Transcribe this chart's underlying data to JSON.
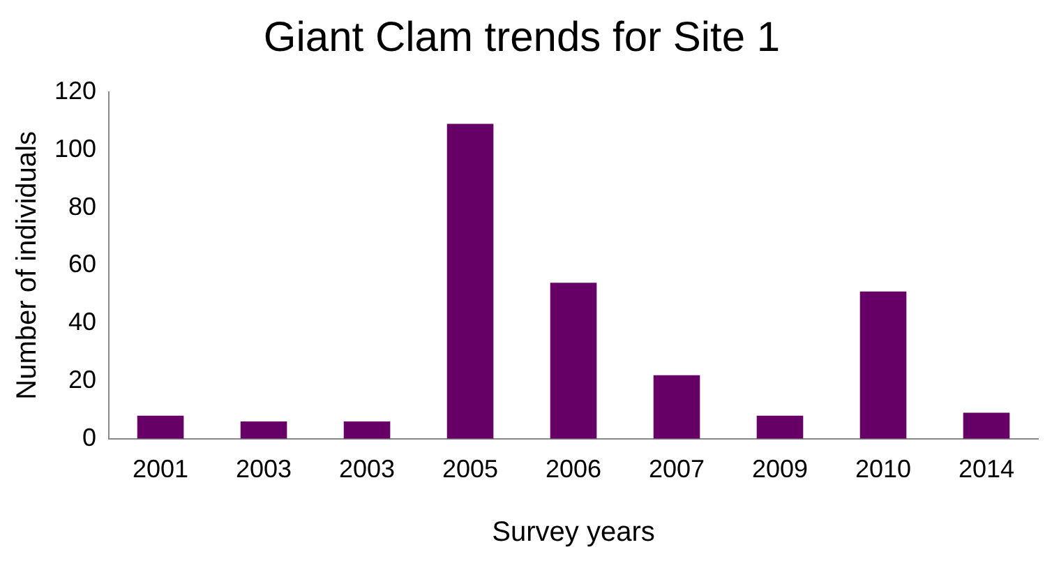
{
  "chart_data": {
    "type": "bar",
    "title": "Giant Clam trends for Site 1",
    "xlabel": "Survey years",
    "ylabel": "Number of individuals",
    "categories": [
      "2001",
      "2003",
      "2003",
      "2005",
      "2006",
      "2007",
      "2009",
      "2010",
      "2014"
    ],
    "values": [
      8,
      6,
      6,
      109,
      54,
      22,
      8,
      51,
      9
    ],
    "color": "#660066",
    "ylim": [
      0,
      120
    ],
    "yticks": [
      0,
      20,
      40,
      60,
      80,
      100,
      120
    ],
    "grid": false,
    "legend": false
  }
}
